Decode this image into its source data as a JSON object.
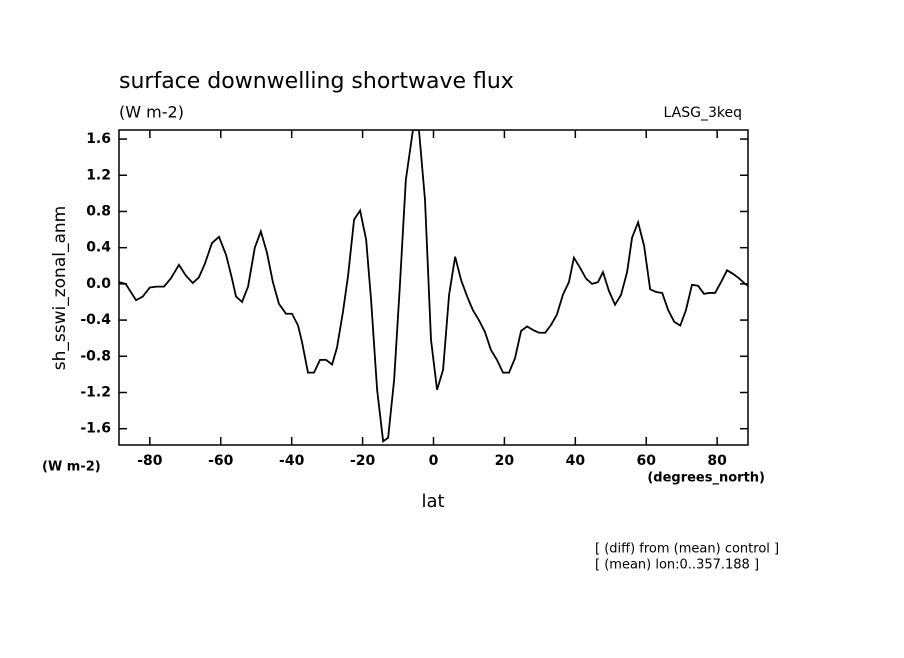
{
  "chart_data": {
    "type": "line",
    "title": "surface downwelling shortwave flux",
    "subtitle": "(W m-2)",
    "model_label": "LASG_3keq",
    "y_label": "sh_sswi_zonal_anm",
    "y_units": "(W m-2)",
    "x_label": "lat",
    "x_units": "(degrees_north)",
    "notes": [
      "[ (diff) from (mean) control ]",
      "[ (mean) lon:0..357.188 ]"
    ],
    "color": "#000000",
    "xlim": [
      -88.7,
      88.7
    ],
    "xticks": [
      -80,
      -60,
      -40,
      -20,
      0,
      20,
      40,
      60,
      80
    ],
    "ylim": [
      -1.78,
      1.7
    ],
    "yticks": [
      1.6,
      1.2,
      0.8,
      0.4,
      {
        "value": 0,
        "label": "0.0"
      },
      -0.4,
      -0.8,
      -1.2,
      -1.6
    ],
    "x": [
      -88.7,
      -86.8,
      -83.9,
      -82.0,
      -80.0,
      -78.0,
      -76.0,
      -74.1,
      -72.7,
      -71.8,
      -69.8,
      -67.9,
      -66.2,
      -64.5,
      -62.5,
      -60.5,
      -58.5,
      -56.9,
      -55.7,
      -54.0,
      -52.3,
      -50.4,
      -48.7,
      -47.0,
      -45.3,
      -43.6,
      -41.6,
      -39.9,
      -38.2,
      -37.1,
      -35.4,
      -33.7,
      -32.0,
      -30.3,
      -28.6,
      -27.2,
      -25.5,
      -24.1,
      -22.4,
      -20.7,
      -19.0,
      -17.6,
      -15.9,
      -14.2,
      -12.8,
      -11.1,
      -9.5,
      -7.8,
      -5.8,
      -4.1,
      -2.4,
      -0.7,
      1.0,
      2.7,
      4.4,
      6.1,
      7.8,
      9.5,
      11.1,
      12.8,
      14.5,
      16.2,
      17.9,
      19.6,
      21.3,
      23.0,
      24.7,
      26.4,
      28.1,
      29.8,
      31.5,
      33.2,
      34.8,
      36.5,
      38.2,
      39.6,
      41.3,
      43.0,
      44.7,
      46.4,
      47.8,
      49.5,
      51.2,
      52.9,
      54.6,
      56.0,
      57.7,
      59.4,
      61.1,
      62.8,
      64.5,
      66.2,
      67.9,
      69.6,
      71.2,
      72.9,
      74.6,
      76.3,
      77.7,
      79.4,
      81.1,
      82.8,
      84.5,
      86.2,
      87.9,
      88.7
    ],
    "values": [
      0.02,
      0,
      -0.18,
      -0.14,
      -0.04,
      -0.03,
      -0.03,
      0.06,
      0.15,
      0.21,
      0.09,
      0.01,
      0.07,
      0.22,
      0.45,
      0.52,
      0.32,
      0.07,
      -0.14,
      -0.2,
      -0.03,
      0.4,
      0.58,
      0.35,
      0.02,
      -0.22,
      -0.33,
      -0.33,
      -0.46,
      -0.64,
      -0.98,
      -0.98,
      -0.84,
      -0.84,
      -0.89,
      -0.7,
      -0.3,
      0.09,
      0.71,
      0.81,
      0.49,
      -0.18,
      -1.17,
      -1.74,
      -1.7,
      -1.06,
      -0.03,
      1.15,
      1.7,
      1.7,
      0.93,
      -0.62,
      -1.17,
      -0.95,
      -0.12,
      0.3,
      0.04,
      -0.14,
      -0.29,
      -0.4,
      -0.53,
      -0.73,
      -0.84,
      -0.98,
      -0.98,
      -0.82,
      -0.52,
      -0.47,
      -0.51,
      -0.54,
      -0.54,
      -0.45,
      -0.34,
      -0.12,
      0.02,
      0.29,
      0.18,
      0.06,
      0,
      0.02,
      0.13,
      -0.08,
      -0.23,
      -0.12,
      0.13,
      0.51,
      0.68,
      0.42,
      -0.06,
      -0.09,
      -0.1,
      -0.29,
      -0.42,
      -0.46,
      -0.29,
      -0.01,
      -0.02,
      -0.11,
      -0.1,
      -0.1,
      0.02,
      0.15,
      0.11,
      0.06,
      0,
      -0.02
    ]
  }
}
